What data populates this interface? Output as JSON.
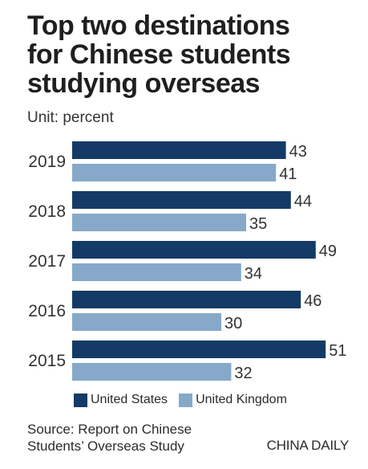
{
  "title_lines": [
    "Top two destinations",
    "for Chinese students",
    "studying overseas"
  ],
  "unit": "Unit: percent",
  "legend": [
    {
      "label": "United States",
      "color": "#143b66"
    },
    {
      "label": "United Kingdom",
      "color": "#86a9c9"
    }
  ],
  "source_lines": [
    "Source: Report on Chinese",
    "Students’ Overseas Study"
  ],
  "brand": "CHINA DAILY",
  "chart_data": {
    "type": "bar",
    "orientation": "horizontal",
    "categories": [
      "2019",
      "2018",
      "2017",
      "2016",
      "2015"
    ],
    "series": [
      {
        "name": "United States",
        "values": [
          43,
          44,
          49,
          46,
          51
        ],
        "color": "#143b66"
      },
      {
        "name": "United Kingdom",
        "values": [
          41,
          35,
          34,
          30,
          32
        ],
        "color": "#86a9c9"
      }
    ],
    "title": "Top two destinations for Chinese students studying overseas",
    "ylabel": "Unit: percent",
    "data_labels": true,
    "legend_position": "bottom",
    "grid": false
  }
}
